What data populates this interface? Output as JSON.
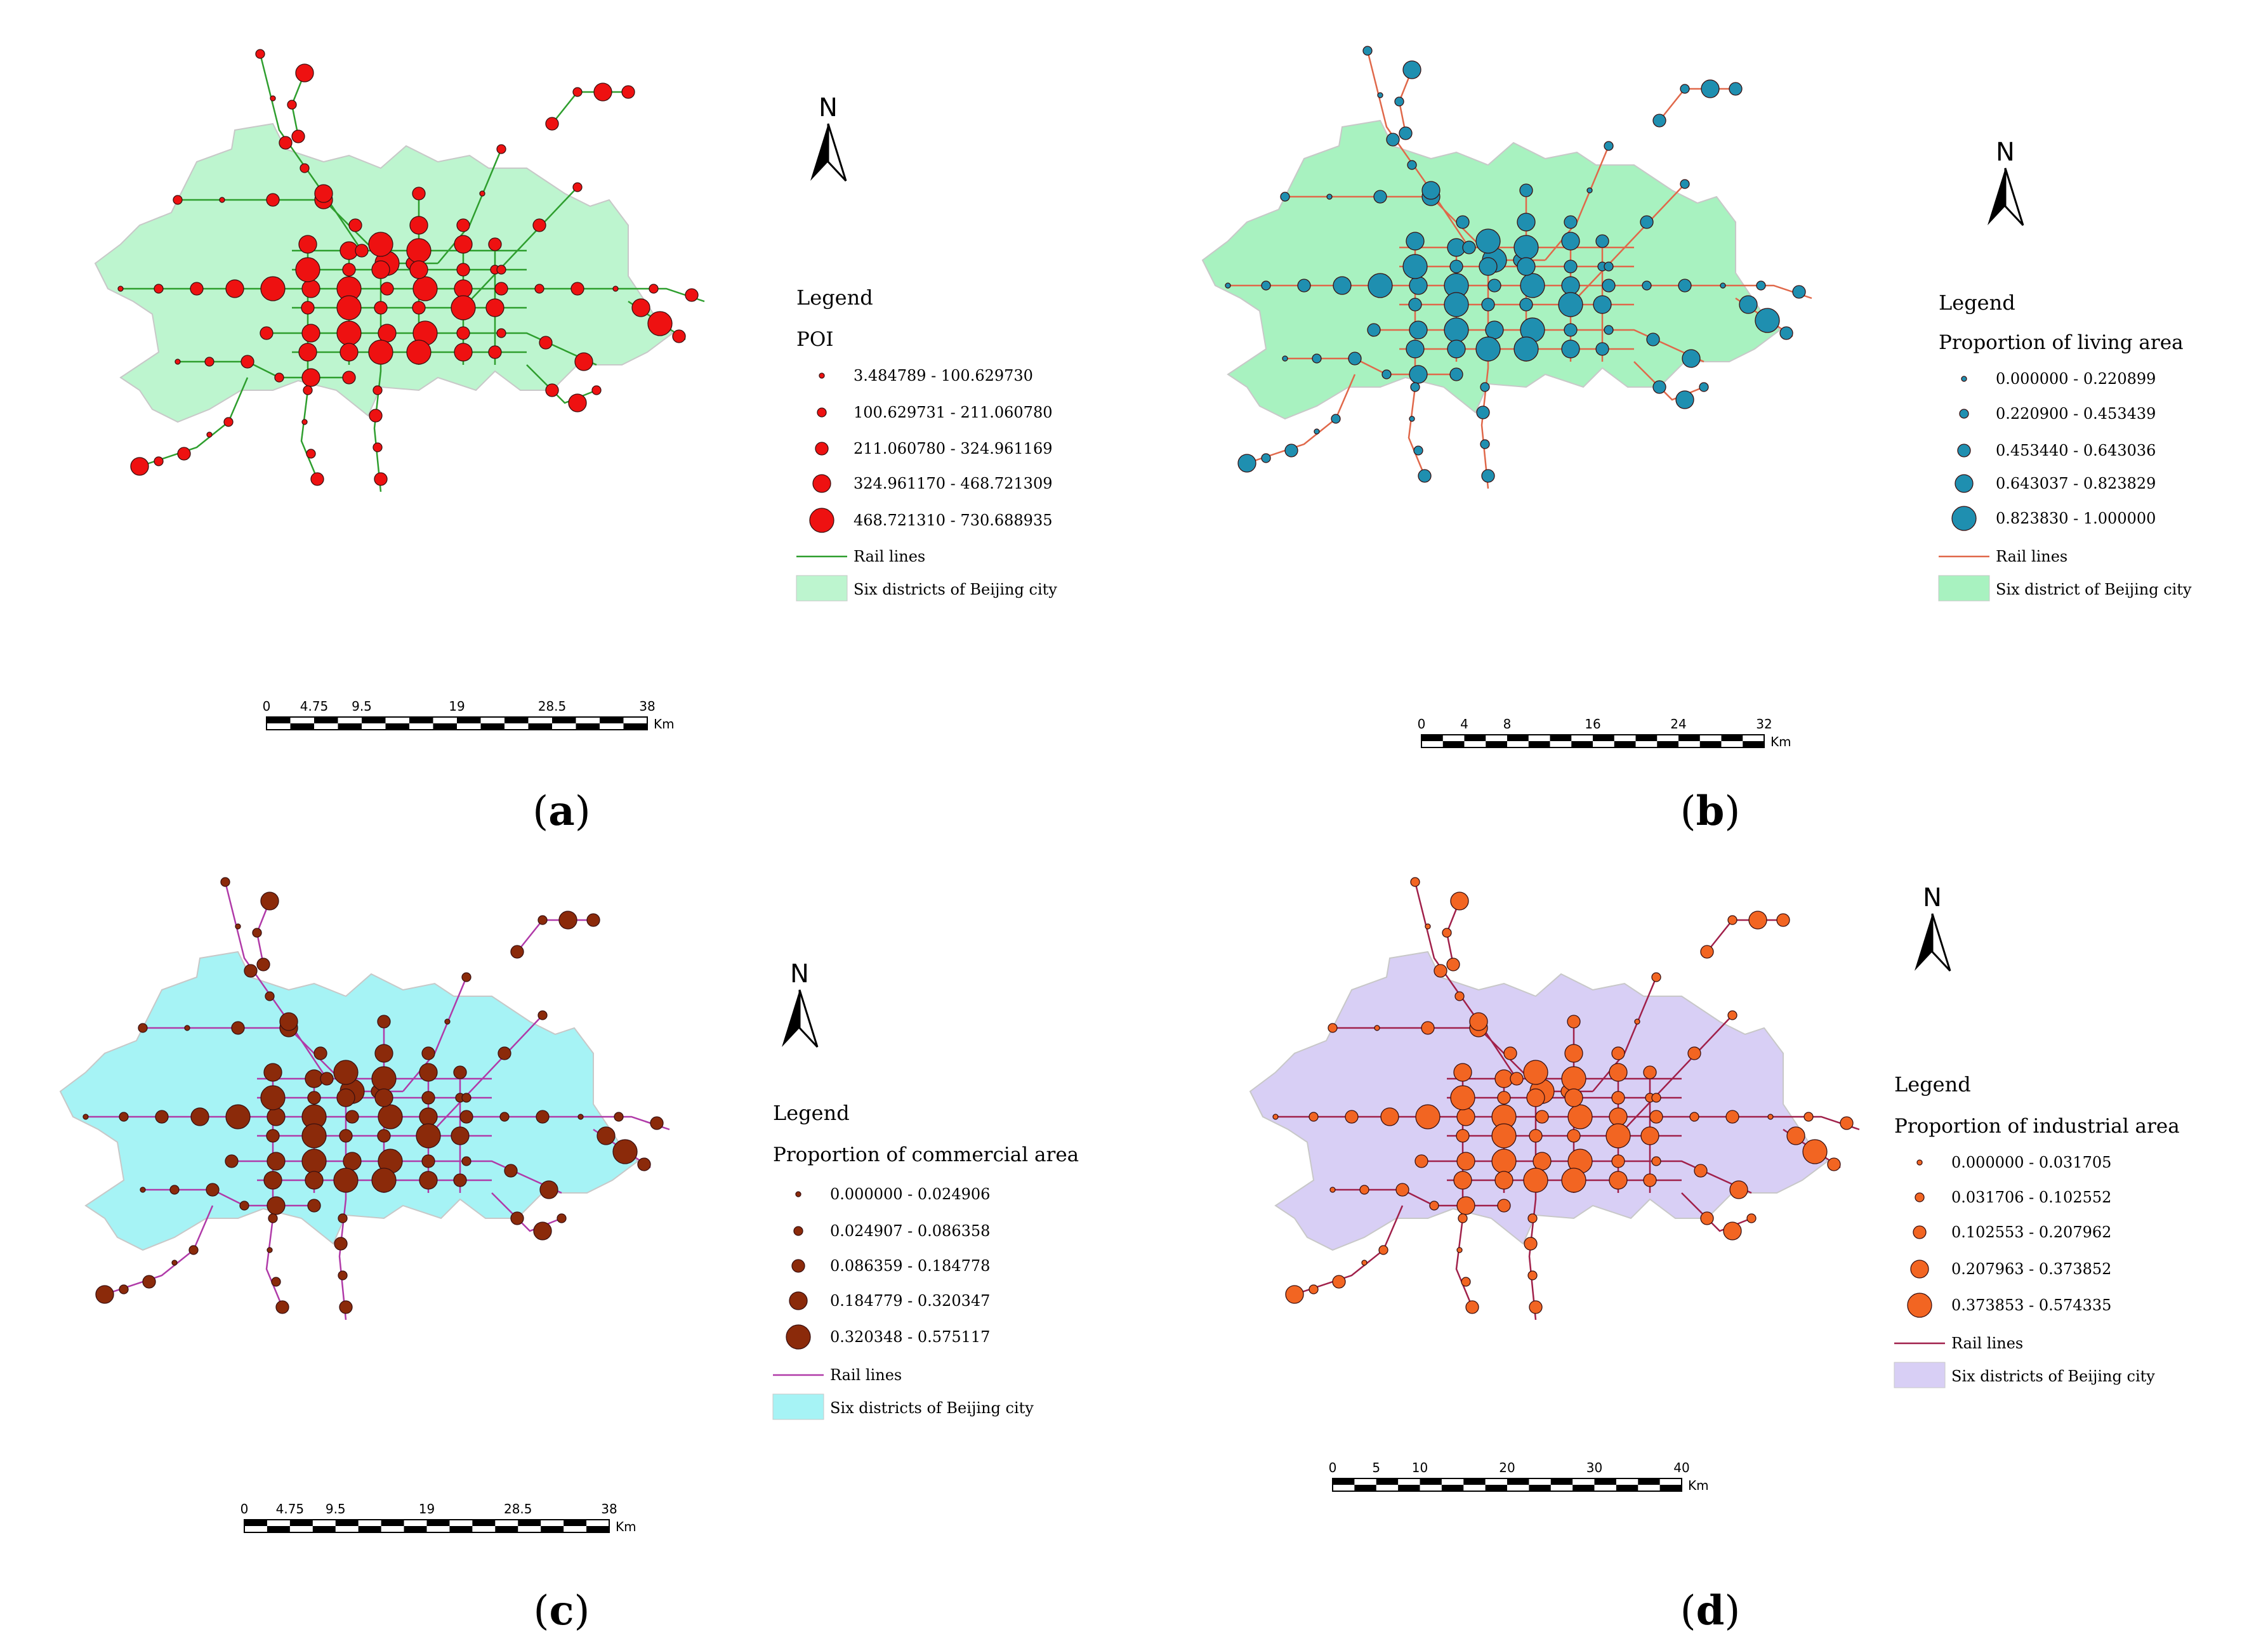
{
  "figure": {
    "panels": [
      {
        "id": "a",
        "label_open": "(",
        "label_letter": "a",
        "label_close": ")",
        "legend_title": "Legend",
        "legend_subtitle": "POI",
        "classes": [
          "3.484789 - 100.629730",
          "100.629731 - 211.060780",
          "211.060780 - 324.961169",
          "324.961170 - 468.721309",
          "468.721310 - 730.688935"
        ],
        "line_label": "Rail lines",
        "area_label": "Six districts of Beijing city",
        "point_color": "#ee1111",
        "line_color": "#2e9e2e",
        "area_color": "#bdf5cf",
        "north": "N",
        "scale_ticks": [
          "0",
          "4.75",
          "9.5",
          "19",
          "28.5",
          "38"
        ],
        "scale_unit": "Km"
      },
      {
        "id": "b",
        "label_open": "(",
        "label_letter": "b",
        "label_close": ")",
        "legend_title": "Legend",
        "legend_subtitle": "Proportion of living area",
        "classes": [
          "0.000000 - 0.220899",
          "0.220900 - 0.453439",
          "0.453440 - 0.643036",
          "0.643037 - 0.823829",
          "0.823830 - 1.000000"
        ],
        "line_label": "Rail lines",
        "area_label": "Six district of Beijing city",
        "point_color": "#1f8fb0",
        "line_color": "#e0684a",
        "area_color": "#a8f2c0",
        "north": "N",
        "scale_ticks": [
          "0",
          "4",
          "8",
          "16",
          "24",
          "32"
        ],
        "scale_unit": "Km"
      },
      {
        "id": "c",
        "label_open": "(",
        "label_letter": "c",
        "label_close": ")",
        "legend_title": "Legend",
        "legend_subtitle": "Proportion of commercial area",
        "classes": [
          "0.000000 - 0.024906",
          "0.024907 - 0.086358",
          "0.086359 - 0.184778",
          "0.184779 - 0.320347",
          "0.320348 - 0.575117"
        ],
        "line_label": "Rail lines",
        "area_label": "Six districts of Beijing city",
        "point_color": "#8b2a0a",
        "line_color": "#b03aa8",
        "area_color": "#a6f3f5",
        "north": "N",
        "scale_ticks": [
          "0",
          "4.75",
          "9.5",
          "19",
          "28.5",
          "38"
        ],
        "scale_unit": "Km"
      },
      {
        "id": "d",
        "label_open": "(",
        "label_letter": "d",
        "label_close": ")",
        "legend_title": "Legend",
        "legend_subtitle": "Proportion of industrial area",
        "classes": [
          "0.000000 - 0.031705",
          "0.031706 - 0.102552",
          "0.102553 - 0.207962",
          "0.207963 - 0.373852",
          "0.373853 - 0.574335"
        ],
        "line_label": "Rail lines",
        "area_label": "Six districts of Beijing city",
        "point_color": "#f26522",
        "line_color": "#a0204a",
        "area_color": "#d8cff5",
        "north": "N",
        "scale_ticks": [
          "0",
          "5",
          "10",
          "20",
          "30",
          "40"
        ],
        "scale_unit": "Km"
      }
    ]
  }
}
